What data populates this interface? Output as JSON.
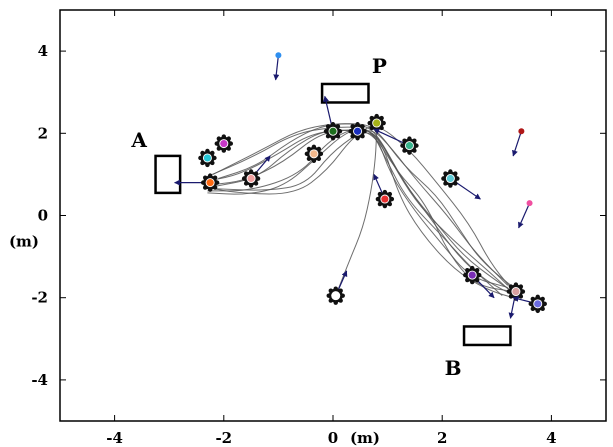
{
  "chart_data": {
    "type": "scatter",
    "title": "",
    "xlabel": "(m)",
    "ylabel": "(m)",
    "xlim": [
      -5,
      5
    ],
    "ylim": [
      -5,
      5
    ],
    "xticks": [
      -4,
      -2,
      0,
      2,
      4
    ],
    "yticks": [
      -4,
      -2,
      0,
      2,
      4
    ],
    "xtick_labels": [
      "-4",
      "-2",
      "0",
      "2",
      "4"
    ],
    "ytick_labels": [
      "-4",
      "-2",
      "0",
      "2",
      "4"
    ],
    "grid": false,
    "regions": [
      {
        "label": "A",
        "x0": -3.25,
        "y0": 0.55,
        "x1": -2.8,
        "y1": 1.45,
        "label_x": -3.55,
        "label_y": 1.8
      },
      {
        "label": "P",
        "x0": -0.2,
        "y0": 2.75,
        "x1": 0.65,
        "y1": 3.2,
        "label_x": 0.85,
        "label_y": 3.6
      },
      {
        "label": "B",
        "x0": 2.4,
        "y0": -3.15,
        "x1": 3.25,
        "y1": -2.7,
        "label_x": 2.2,
        "label_y": -3.75
      }
    ],
    "agents": [
      {
        "x": -2.25,
        "y": 0.8,
        "color": "#ff6a13",
        "robot": true,
        "hx": -2.9,
        "hy": 0.8
      },
      {
        "x": -2.3,
        "y": 1.4,
        "color": "#27c8d8",
        "robot": true,
        "hx": -2.3,
        "hy": 1.4
      },
      {
        "x": -2.0,
        "y": 1.75,
        "color": "#c837c8",
        "robot": true,
        "hx": -2.0,
        "hy": 1.75
      },
      {
        "x": -1.5,
        "y": 0.9,
        "color": "#f0a0a0",
        "robot": true,
        "hx": -1.15,
        "hy": 1.45
      },
      {
        "x": -0.35,
        "y": 1.5,
        "color": "#f2b88c",
        "robot": true,
        "hx": -0.35,
        "hy": 1.5
      },
      {
        "x": 0.0,
        "y": 2.05,
        "color": "#1c6e1c",
        "robot": true,
        "hx": -0.15,
        "hy": 2.9
      },
      {
        "x": 0.45,
        "y": 2.05,
        "color": "#1a2fbf",
        "robot": true,
        "hx": 0.45,
        "hy": 2.05
      },
      {
        "x": 0.8,
        "y": 2.25,
        "color": "#a6b318",
        "robot": true,
        "hx": 0.8,
        "hy": 2.25
      },
      {
        "x": 1.4,
        "y": 1.7,
        "color": "#37b38c",
        "robot": true,
        "hx": 0.75,
        "hy": 2.1
      },
      {
        "x": 0.95,
        "y": 0.4,
        "color": "#e83030",
        "robot": true,
        "hx": 0.75,
        "hy": 1.0
      },
      {
        "x": 0.05,
        "y": -1.95,
        "color": "#ffffff",
        "robot": true,
        "hx": 0.25,
        "hy": -1.35
      },
      {
        "x": 2.15,
        "y": 0.9,
        "color": "#5dcbd6",
        "robot": true,
        "hx": 2.7,
        "hy": 0.4
      },
      {
        "x": 2.55,
        "y": -1.45,
        "color": "#7a2db5",
        "robot": true,
        "hx": 2.95,
        "hy": -2.0
      },
      {
        "x": 3.35,
        "y": -1.85,
        "color": "#d8a0a0",
        "robot": true,
        "hx": 3.25,
        "hy": -2.5
      },
      {
        "x": 3.75,
        "y": -2.15,
        "color": "#6a6ae0",
        "robot": true,
        "hx": 3.3,
        "hy": -2.0
      },
      {
        "x": -1.0,
        "y": 3.9,
        "color": "#2f8ff0",
        "robot": false,
        "hx": -1.05,
        "hy": 3.3
      },
      {
        "x": 3.45,
        "y": 2.05,
        "color": "#b01818",
        "robot": false,
        "hx": 3.3,
        "hy": 1.45
      },
      {
        "x": 3.6,
        "y": 0.3,
        "color": "#f04fa0",
        "robot": false,
        "hx": 3.4,
        "hy": -0.3
      }
    ],
    "trajectories": [
      [
        [
          -2.2,
          0.75
        ],
        [
          -1.6,
          0.85
        ],
        [
          -0.9,
          1.3
        ],
        [
          -0.25,
          2.0
        ],
        [
          0.35,
          2.1
        ],
        [
          0.75,
          2.05
        ],
        [
          1.0,
          1.5
        ],
        [
          1.4,
          0.6
        ],
        [
          1.9,
          -0.2
        ],
        [
          2.4,
          -1.0
        ],
        [
          3.0,
          -1.6
        ],
        [
          3.3,
          -1.85
        ]
      ],
      [
        [
          -2.3,
          0.6
        ],
        [
          -1.5,
          0.6
        ],
        [
          -0.6,
          1.0
        ],
        [
          -0.1,
          1.8
        ],
        [
          0.4,
          2.15
        ],
        [
          0.8,
          2.0
        ],
        [
          1.2,
          1.0
        ],
        [
          1.6,
          0.2
        ],
        [
          2.2,
          -0.6
        ],
        [
          2.8,
          -1.3
        ],
        [
          3.3,
          -1.9
        ]
      ],
      [
        [
          -2.1,
          0.9
        ],
        [
          -1.4,
          1.2
        ],
        [
          -0.8,
          1.8
        ],
        [
          -0.2,
          2.2
        ],
        [
          0.5,
          2.25
        ],
        [
          0.8,
          2.1
        ],
        [
          1.3,
          1.2
        ],
        [
          1.9,
          0.5
        ],
        [
          2.3,
          -0.3
        ],
        [
          2.7,
          -1.1
        ],
        [
          3.35,
          -1.8
        ]
      ],
      [
        [
          -2.35,
          0.7
        ],
        [
          -1.8,
          0.55
        ],
        [
          -0.7,
          0.5
        ],
        [
          -0.1,
          1.1
        ],
        [
          0.35,
          1.9
        ],
        [
          0.7,
          2.15
        ],
        [
          1.1,
          1.6
        ],
        [
          1.5,
          0.9
        ],
        [
          2.1,
          0.0
        ],
        [
          2.6,
          -0.9
        ],
        [
          3.2,
          -1.7
        ]
      ],
      [
        [
          -2.2,
          1.0
        ],
        [
          -1.3,
          1.6
        ],
        [
          -0.6,
          2.1
        ],
        [
          0.1,
          2.25
        ],
        [
          0.6,
          2.2
        ],
        [
          0.85,
          1.9
        ],
        [
          1.3,
          0.8
        ],
        [
          1.8,
          -0.1
        ],
        [
          2.3,
          -1.0
        ],
        [
          2.8,
          -1.6
        ],
        [
          3.4,
          -2.0
        ]
      ],
      [
        [
          -2.3,
          0.55
        ],
        [
          -1.6,
          0.5
        ],
        [
          -0.9,
          0.7
        ],
        [
          -0.3,
          1.4
        ],
        [
          0.2,
          2.0
        ],
        [
          0.65,
          2.2
        ],
        [
          1.0,
          1.3
        ],
        [
          1.35,
          0.4
        ],
        [
          2.0,
          -0.5
        ],
        [
          2.55,
          -1.3
        ],
        [
          3.1,
          -1.95
        ]
      ],
      [
        [
          -2.25,
          0.85
        ],
        [
          -1.7,
          1.0
        ],
        [
          -1.0,
          1.5
        ],
        [
          -0.4,
          2.0
        ],
        [
          0.3,
          2.1
        ],
        [
          0.75,
          2.0
        ],
        [
          1.15,
          1.1
        ],
        [
          1.7,
          0.3
        ],
        [
          2.1,
          -0.9
        ],
        [
          2.6,
          -1.7
        ],
        [
          3.3,
          -1.85
        ]
      ],
      [
        [
          -2.15,
          0.65
        ],
        [
          -1.2,
          0.6
        ],
        [
          -0.5,
          0.75
        ],
        [
          -0.05,
          1.5
        ],
        [
          0.45,
          2.0
        ],
        [
          0.8,
          2.25
        ],
        [
          1.4,
          1.6
        ],
        [
          1.9,
          0.8
        ],
        [
          2.5,
          -0.2
        ],
        [
          2.9,
          -1.2
        ],
        [
          3.35,
          -1.9
        ]
      ],
      [
        [
          -2.3,
          0.95
        ],
        [
          -1.5,
          1.4
        ],
        [
          -0.7,
          2.0
        ],
        [
          0.0,
          2.15
        ],
        [
          0.55,
          2.15
        ],
        [
          0.9,
          1.8
        ],
        [
          1.2,
          0.5
        ],
        [
          1.6,
          -0.4
        ],
        [
          2.2,
          -1.3
        ],
        [
          2.8,
          -1.8
        ],
        [
          3.3,
          -2.0
        ]
      ],
      [
        [
          -2.2,
          0.7
        ],
        [
          -1.4,
          0.9
        ],
        [
          -0.8,
          1.6
        ],
        [
          -0.15,
          2.1
        ],
        [
          0.5,
          2.05
        ],
        [
          0.8,
          1.95
        ],
        [
          1.05,
          1.0
        ],
        [
          1.5,
          0.1
        ],
        [
          2.0,
          -0.7
        ],
        [
          2.5,
          -1.5
        ],
        [
          3.2,
          -1.75
        ]
      ],
      [
        [
          0.05,
          -1.95
        ],
        [
          0.3,
          -1.1
        ],
        [
          0.55,
          -0.3
        ],
        [
          0.7,
          0.6
        ],
        [
          0.78,
          1.4
        ],
        [
          0.8,
          2.1
        ]
      ]
    ]
  }
}
